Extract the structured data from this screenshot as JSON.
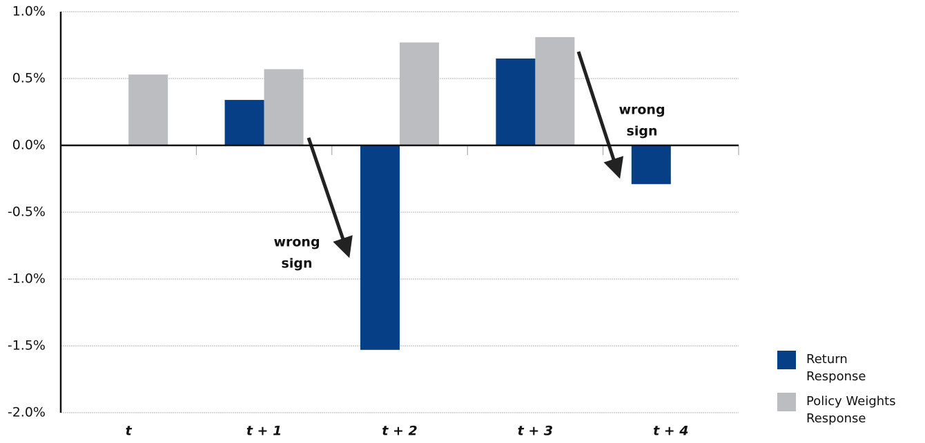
{
  "chart_data": {
    "type": "bar",
    "categories": [
      "t",
      "t + 1",
      "t + 2",
      "t + 3",
      "t + 4"
    ],
    "series": [
      {
        "name": "Return Response",
        "color": "#073f86",
        "values": [
          null,
          0.34,
          -1.53,
          0.65,
          -0.29
        ]
      },
      {
        "name": "Policy Weights Response",
        "color": "#bcbdc0",
        "values": [
          0.53,
          0.57,
          0.77,
          0.81,
          null
        ]
      }
    ],
    "ylim": [
      -2.0,
      1.0
    ],
    "yticks": [
      {
        "value": 1.0,
        "label": "1.0%"
      },
      {
        "value": 0.5,
        "label": "0.5%"
      },
      {
        "value": 0,
        "label": "0.0%"
      },
      {
        "value": -0.5,
        "label": "-0.5%"
      },
      {
        "value": -1.0,
        "label": "-1.0%"
      },
      {
        "value": -1.5,
        "label": "-1.5%"
      },
      {
        "value": -2.0,
        "label": "-2.0%"
      }
    ],
    "grid": true,
    "annotations": [
      {
        "lines": [
          "wrong",
          "sign"
        ]
      },
      {
        "lines": [
          "wrong",
          "sign"
        ]
      }
    ]
  }
}
